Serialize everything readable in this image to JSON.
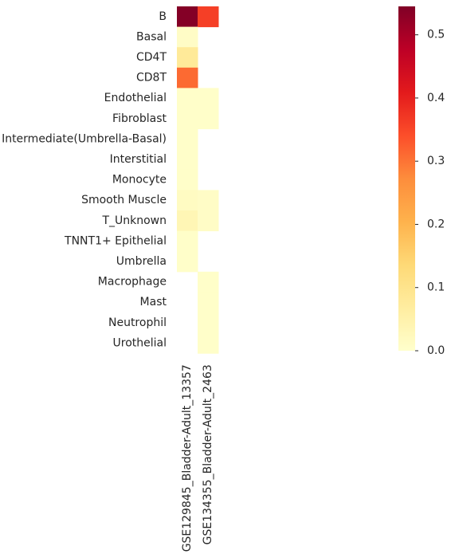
{
  "chart_data": {
    "type": "heatmap",
    "rows": [
      "B",
      "Basal",
      "CD4T",
      "CD8T",
      "Endothelial",
      "Fibroblast",
      "Intermediate(Umbrella-Basal)",
      "Interstitial",
      "Monocyte",
      "Smooth Muscle",
      "T_Unknown",
      "TNNT1+ Epithelial",
      "Umbrella",
      "Macrophage",
      "Mast",
      "Neutrophil",
      "Urothelial"
    ],
    "columns": [
      "GSE129845_Bladder-Adult_13357",
      "GSE134355_Bladder-Adult_2463"
    ],
    "values": [
      [
        0.54,
        0.36
      ],
      [
        0.01,
        null
      ],
      [
        0.08,
        null
      ],
      [
        0.31,
        null
      ],
      [
        0.005,
        0.005
      ],
      [
        0.005,
        0.005
      ],
      [
        0.005,
        null
      ],
      [
        0.005,
        null
      ],
      [
        0.005,
        null
      ],
      [
        0.015,
        0.01
      ],
      [
        0.035,
        0.01
      ],
      [
        0.005,
        null
      ],
      [
        0.005,
        null
      ],
      [
        null,
        0.005
      ],
      [
        null,
        0.005
      ],
      [
        null,
        0.005
      ],
      [
        null,
        0.005
      ]
    ],
    "colorbar": {
      "min": 0.0,
      "max": 0.545,
      "ticks": [
        "0.0",
        "0.1",
        "0.2",
        "0.3",
        "0.4",
        "0.5"
      ],
      "tick_values": [
        0.0,
        0.1,
        0.2,
        0.3,
        0.4,
        0.5
      ],
      "colormap": "YlOrRd"
    },
    "colors": [
      "#ffffcc",
      "#ffeda0",
      "#fed976",
      "#feb24c",
      "#fd8d3c",
      "#fc4e2a",
      "#e31a1c",
      "#bd0026",
      "#800026"
    ]
  }
}
